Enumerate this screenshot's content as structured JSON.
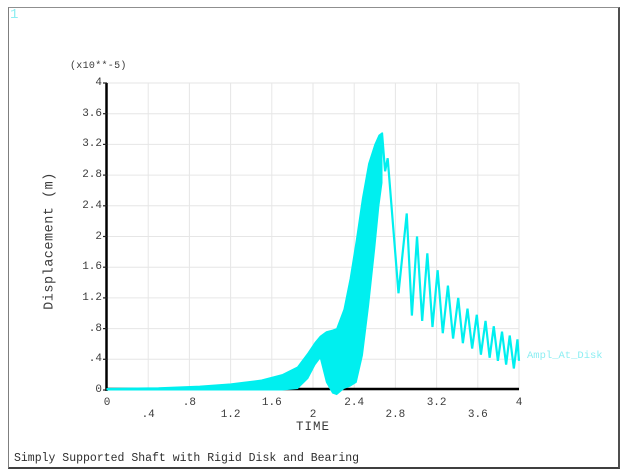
{
  "window": {
    "plot_number": "1"
  },
  "colors": {
    "curve": "#00efef",
    "cyan_text": "#8deef2",
    "grid": "#e6e6e6",
    "axis": "#000000",
    "text": "#3b3b3b"
  },
  "chart_data": {
    "type": "line",
    "title": "Simply Supported Shaft with Rigid Disk and Bearing",
    "xlabel": "TIME",
    "ylabel": "Displacement (m)",
    "y_scale_note": "(x10**-5)",
    "xlim": [
      0,
      4
    ],
    "ylim": [
      0,
      4
    ],
    "grid": true,
    "x_ticks": [
      0,
      0.4,
      0.8,
      1.2,
      1.6,
      2,
      2.4,
      2.8,
      3.2,
      3.6,
      4
    ],
    "x_tick_labels": [
      "0",
      ".4",
      ".8",
      "1.2",
      "1.6",
      "2",
      "2.4",
      "2.8",
      "3.2",
      "3.6",
      "4"
    ],
    "y_ticks": [
      0,
      0.4,
      0.8,
      1.2,
      1.6,
      2,
      2.4,
      2.8,
      3.2,
      3.6,
      4
    ],
    "y_tick_labels": [
      "0",
      ".4",
      ".8",
      "1.2",
      "1.6",
      "2",
      "2.4",
      "2.8",
      "3.2",
      "3.6",
      "4"
    ],
    "series": [
      {
        "name": "Ampl_At_Disk",
        "peak": {
          "t": 2.67,
          "value": 3.35
        },
        "envelope_t": [
          0,
          0.5,
          0.9,
          1.2,
          1.5,
          1.7,
          1.85,
          1.95,
          2.02,
          2.07,
          2.13,
          2.19,
          2.23,
          2.3,
          2.36,
          2.42,
          2.48,
          2.54,
          2.6,
          2.64,
          2.67
        ],
        "envelope_upper": [
          0.02,
          0.03,
          0.05,
          0.08,
          0.13,
          0.2,
          0.3,
          0.48,
          0.62,
          0.7,
          0.76,
          0.78,
          0.8,
          1.05,
          1.45,
          1.95,
          2.5,
          2.95,
          3.2,
          3.32,
          3.35
        ],
        "envelope_lower": [
          0,
          0,
          0,
          0,
          0,
          0,
          0.02,
          0.15,
          0.33,
          0.42,
          0.1,
          -0.04,
          -0.06,
          0.02,
          0.05,
          0.1,
          0.45,
          1.1,
          1.85,
          2.4,
          2.7
        ],
        "ringdown": [
          [
            2.67,
            3.35
          ],
          [
            2.7,
            2.85
          ],
          [
            2.725,
            3.02
          ],
          [
            2.83,
            1.26
          ],
          [
            2.91,
            2.3
          ],
          [
            2.96,
            0.97
          ],
          [
            3.01,
            2.0
          ],
          [
            3.06,
            0.9
          ],
          [
            3.11,
            1.78
          ],
          [
            3.16,
            0.82
          ],
          [
            3.21,
            1.56
          ],
          [
            3.26,
            0.74
          ],
          [
            3.31,
            1.36
          ],
          [
            3.36,
            0.67
          ],
          [
            3.41,
            1.2
          ],
          [
            3.455,
            0.61
          ],
          [
            3.5,
            1.06
          ],
          [
            3.545,
            0.54
          ],
          [
            3.59,
            0.98
          ],
          [
            3.63,
            0.46
          ],
          [
            3.675,
            0.9
          ],
          [
            3.715,
            0.42
          ],
          [
            3.755,
            0.83
          ],
          [
            3.795,
            0.38
          ],
          [
            3.835,
            0.76
          ],
          [
            3.875,
            0.33
          ],
          [
            3.91,
            0.71
          ],
          [
            3.95,
            0.28
          ],
          [
            3.985,
            0.66
          ],
          [
            4.0,
            0.38
          ]
        ]
      }
    ]
  }
}
